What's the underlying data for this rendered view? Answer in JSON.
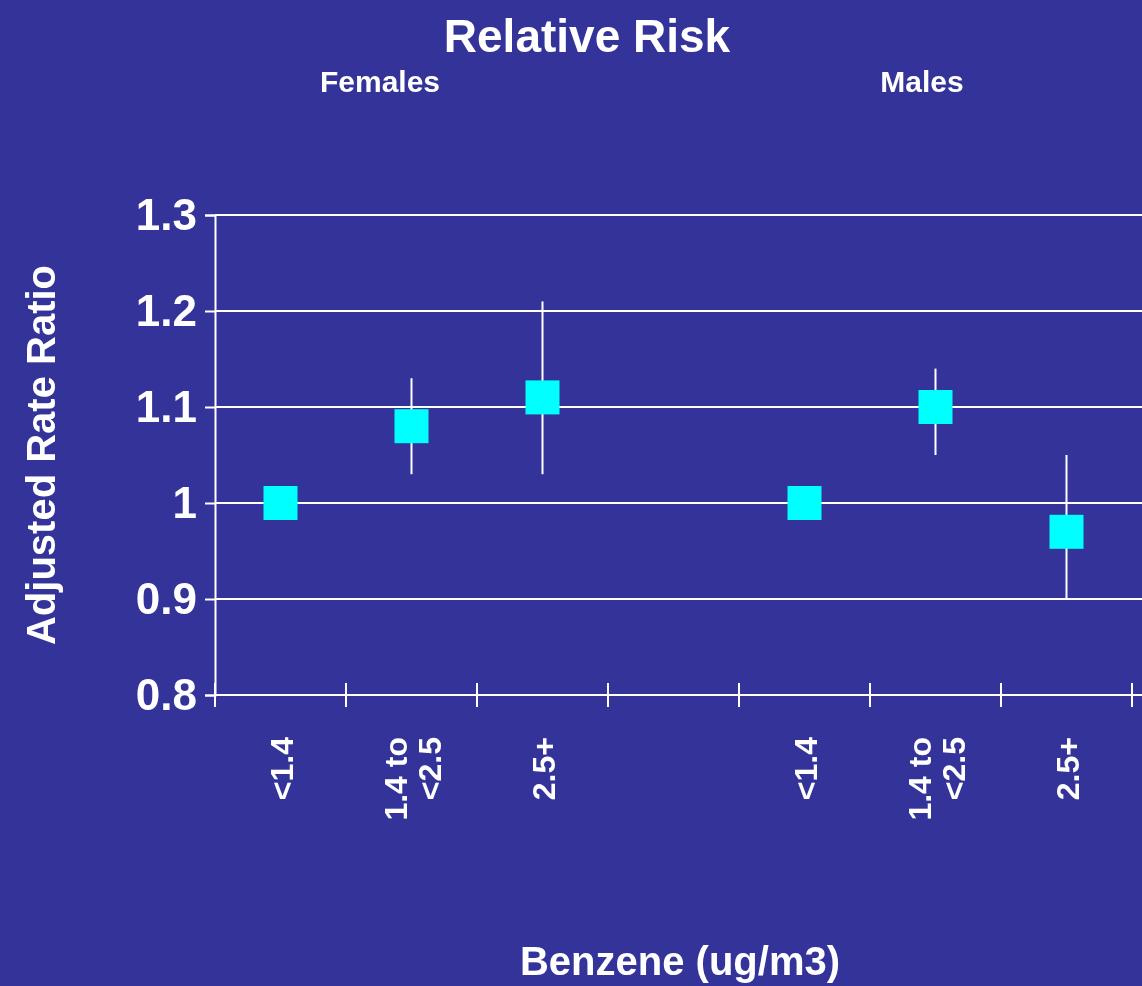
{
  "chart_data": {
    "type": "scatter",
    "title": "Relative Risk",
    "xlabel": "Benzene (ug/m3)",
    "ylabel": "Adjusted Rate Ratio",
    "annotations": [
      "Females",
      "Males"
    ],
    "categories": [
      "<1.4",
      "1.4 to <2.5",
      "2.5+",
      null,
      "<1.4",
      "1.4 to <2.5",
      "2.5+"
    ],
    "series": [
      {
        "color": "#00ffff",
        "values": [
          1,
          1.08,
          1.11,
          null,
          1,
          1.1,
          0.97
        ],
        "errors": [
          null,
          [
            1.03,
            1.13
          ],
          [
            1.03,
            1.21
          ],
          null,
          null,
          [
            1.05,
            1.14
          ],
          [
            0.9,
            1.05
          ]
        ]
      }
    ],
    "ylim": [
      0.8,
      1.3
    ],
    "yticks": [
      0.8,
      0.9,
      1,
      1.1,
      1.2,
      1.3
    ],
    "grid": "y",
    "marker": "square"
  }
}
